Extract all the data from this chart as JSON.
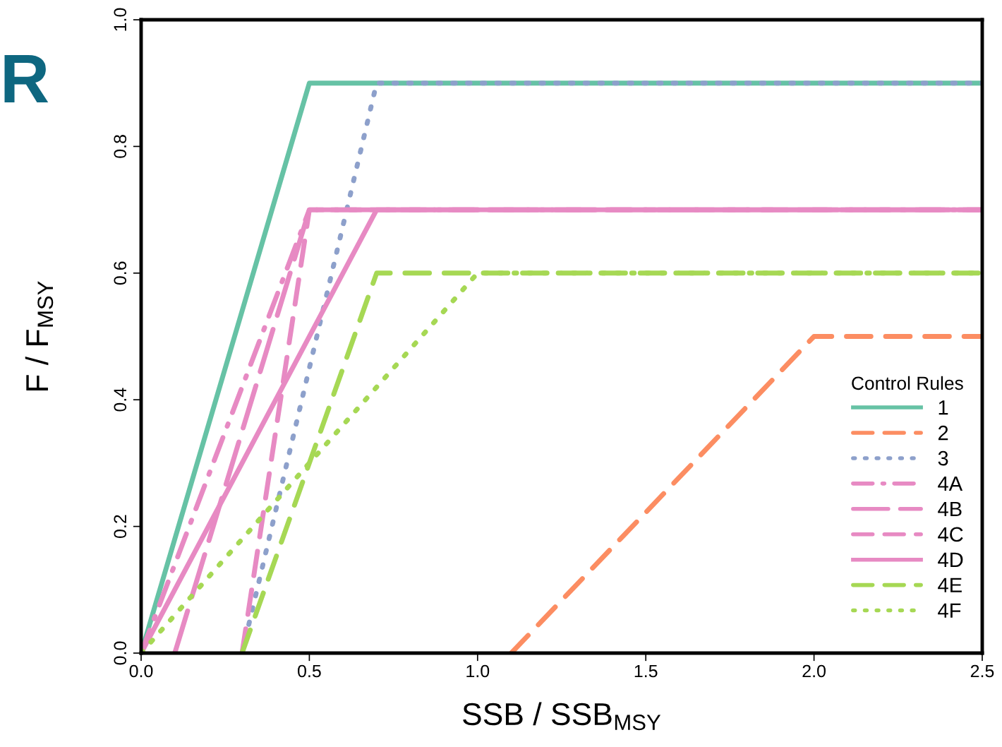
{
  "chart_data": {
    "type": "line",
    "xlabel": "SSB / SSB$_{MSY}$",
    "ylabel": "F / F$_{MSY}$",
    "legend_title": "Control Rules",
    "legend": "bottom right",
    "grid": false,
    "xlim": [
      0,
      2.5
    ],
    "ylim": [
      0,
      1
    ],
    "xticks": [
      {
        "value": 0,
        "label": "0.0"
      },
      0.5,
      {
        "value": 1,
        "label": "1.0"
      },
      1.5,
      {
        "value": 2,
        "label": "2.0"
      },
      2.5
    ],
    "yticks": [
      {
        "value": 0,
        "label": "0.0"
      },
      0.2,
      0.4,
      0.6,
      0.8,
      {
        "value": 1,
        "label": "1.0"
      }
    ],
    "annotations": [
      "R"
    ],
    "series": [
      {
        "name": "1",
        "color": "#66c2a5",
        "line_style": "solid",
        "x": [
          0,
          0.5,
          2.5
        ],
        "values": [
          0,
          0.9,
          0.9
        ]
      },
      {
        "name": "2",
        "color": "#fc8d62",
        "line_style": "dashed",
        "x": [
          1.1,
          2.0,
          2.5
        ],
        "values": [
          0,
          0.5,
          0.5
        ]
      },
      {
        "name": "3",
        "color": "#8da0cb",
        "line_style": "dotted",
        "x": [
          0.3,
          0.7,
          2.5
        ],
        "values": [
          0,
          0.9,
          0.9
        ]
      },
      {
        "name": "4A",
        "color": "#e78ac3",
        "line_style": "dashdot",
        "x": [
          0,
          0.5,
          2.5
        ],
        "values": [
          0,
          0.7,
          0.7
        ]
      },
      {
        "name": "4B",
        "color": "#e78ac3",
        "line_style": "longdash",
        "x": [
          0.1,
          0.5,
          2.5
        ],
        "values": [
          0,
          0.7,
          0.7
        ]
      },
      {
        "name": "4C",
        "color": "#e78ac3",
        "line_style": "dashed",
        "x": [
          0.3,
          0.5,
          2.5
        ],
        "values": [
          0,
          0.7,
          0.7
        ]
      },
      {
        "name": "4D",
        "color": "#e78ac3",
        "line_style": "solid",
        "x": [
          0,
          0.7,
          2.5
        ],
        "values": [
          0,
          0.7,
          0.7
        ]
      },
      {
        "name": "4E",
        "color": "#a6d854",
        "line_style": "dashed",
        "x": [
          0.3,
          0.7,
          2.5
        ],
        "values": [
          0,
          0.6,
          0.6
        ]
      },
      {
        "name": "4F",
        "color": "#a6d854",
        "line_style": "dotted",
        "x": [
          0,
          1.0,
          2.5
        ],
        "values": [
          0,
          0.6,
          0.6
        ]
      }
    ]
  }
}
